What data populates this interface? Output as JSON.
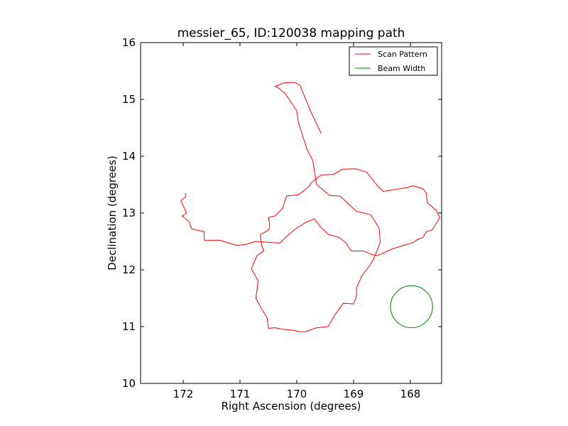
{
  "chart_data": {
    "type": "line",
    "title": "messier_65, ID:120038 mapping path",
    "xlabel": "Right Ascension (degrees)",
    "ylabel": "Declination (degrees)",
    "xlim": [
      172.75,
      167.45
    ],
    "ylim": [
      10,
      16
    ],
    "x_ticks": [
      "172",
      "171",
      "170",
      "169",
      "168"
    ],
    "y_ticks": [
      "10",
      "11",
      "12",
      "13",
      "14",
      "15",
      "16"
    ],
    "x_tick_values": [
      172,
      171,
      170,
      169,
      168
    ],
    "y_tick_values": [
      10,
      11,
      12,
      13,
      14,
      15,
      16
    ],
    "grid": false,
    "legend": {
      "position": "top-right",
      "entries": [
        "Scan Pattern",
        "Beam Width"
      ]
    },
    "series": [
      {
        "name": "Scan Pattern",
        "color": "#ff0000",
        "x": [
          171.96,
          171.96,
          172.04,
          171.94,
          172.02,
          171.9,
          171.85,
          171.63,
          171.63,
          171.35,
          171.2,
          171.05,
          170.89,
          170.72,
          170.45,
          170.3,
          170.22,
          170.05,
          169.85,
          169.69,
          169.58,
          169.44,
          169.25,
          169.13,
          169.08,
          169.03,
          168.82,
          168.69,
          168.58,
          168.31,
          168.15,
          167.95,
          167.88,
          167.78,
          167.72,
          167.62,
          167.48,
          167.55,
          167.7,
          167.72,
          167.78,
          167.95,
          168.05,
          168.35,
          168.48,
          168.58,
          168.77,
          168.97,
          169.2,
          169.35,
          169.57,
          169.75,
          169.78,
          169.97,
          170.18,
          170.25,
          170.38,
          170.5,
          170.48,
          170.48,
          170.5,
          170.64,
          170.62,
          170.58,
          170.7,
          170.8,
          170.68,
          170.72,
          170.64,
          170.52,
          170.5,
          170.38,
          170.22,
          170.1,
          169.95,
          169.85,
          169.65,
          169.45,
          169.32,
          169.18,
          169.0,
          168.95,
          168.95,
          168.85,
          168.75,
          168.65,
          168.53,
          168.55,
          168.62,
          168.7,
          168.95,
          169.07,
          169.24,
          169.42,
          169.65,
          169.72,
          169.82,
          169.97,
          170.0,
          170.2,
          170.32,
          170.38,
          170.22,
          170.05,
          169.95,
          169.75,
          169.57
        ],
        "y": [
          13.35,
          13.28,
          13.22,
          13.0,
          12.95,
          12.85,
          12.72,
          12.67,
          12.52,
          12.52,
          12.47,
          12.43,
          12.45,
          12.5,
          12.48,
          12.47,
          12.55,
          12.7,
          12.83,
          12.9,
          12.75,
          12.62,
          12.57,
          12.47,
          12.38,
          12.33,
          12.33,
          12.27,
          12.25,
          12.37,
          12.42,
          12.48,
          12.53,
          12.57,
          12.67,
          12.7,
          12.92,
          13.05,
          13.18,
          13.35,
          13.43,
          13.48,
          13.45,
          13.4,
          13.38,
          13.48,
          13.72,
          13.78,
          13.77,
          13.68,
          13.67,
          13.53,
          13.47,
          13.32,
          13.3,
          13.08,
          12.95,
          12.92,
          12.82,
          12.75,
          12.7,
          12.62,
          12.43,
          12.33,
          12.25,
          12.02,
          11.8,
          11.5,
          11.35,
          11.15,
          10.97,
          10.98,
          10.95,
          10.94,
          10.91,
          10.91,
          10.98,
          11.0,
          11.22,
          11.41,
          11.4,
          11.53,
          11.68,
          11.9,
          12.03,
          12.18,
          12.48,
          12.73,
          12.85,
          12.97,
          13.03,
          13.14,
          13.3,
          13.31,
          13.5,
          13.93,
          14.12,
          14.59,
          14.8,
          15.1,
          15.2,
          15.23,
          15.29,
          15.3,
          15.26,
          14.78,
          14.4
        ],
        "y_tail_note": ""
      },
      {
        "name": "Beam Width",
        "color": "#008000",
        "shape": "circle",
        "center": [
          167.98,
          11.35
        ],
        "radius_dec": 0.37
      }
    ]
  }
}
